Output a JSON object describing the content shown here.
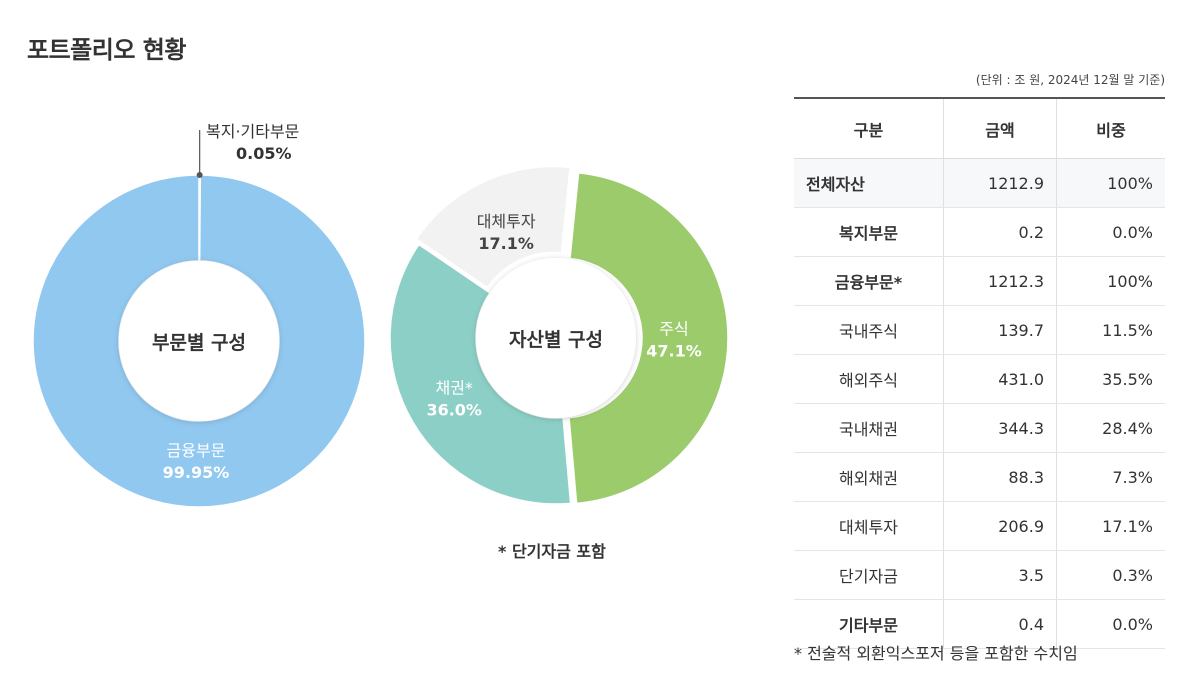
{
  "page_title": "포트폴리오 현황",
  "chart_data": [
    {
      "type": "pie",
      "title": "부문별 구성",
      "categories": [
        "복지·기타부문",
        "금융부문"
      ],
      "values": [
        0.05,
        99.95
      ],
      "labels": [
        "0.05%",
        "99.95%"
      ],
      "colors": [
        "#f2f2f2",
        "#91c8f0"
      ]
    },
    {
      "type": "pie",
      "title": "자산별 구성",
      "categories": [
        "주식",
        "채권*",
        "대체투자"
      ],
      "values": [
        47.1,
        36.0,
        17.1
      ],
      "labels": [
        "47.1%",
        "36.0%",
        "17.1%"
      ],
      "colors": [
        "#9ccb6c",
        "#8ccfc6",
        "#f2f2f2"
      ]
    }
  ],
  "chart_footnote": "* 단기자금 포함",
  "table": {
    "unit_note": "(단위 : 조 원, 2024년 12월 말 기준)",
    "headers": [
      "구분",
      "금액",
      "비중"
    ],
    "rows": [
      {
        "name": "전체자산",
        "amount": "1212.9",
        "share": "100%",
        "bold": true,
        "total": true
      },
      {
        "name": "복지부문",
        "amount": "0.2",
        "share": "0.0%",
        "bold": true
      },
      {
        "name": "금융부문*",
        "amount": "1212.3",
        "share": "100%",
        "bold": true
      },
      {
        "name": "국내주식",
        "amount": "139.7",
        "share": "11.5%"
      },
      {
        "name": "해외주식",
        "amount": "431.0",
        "share": "35.5%"
      },
      {
        "name": "국내채권",
        "amount": "344.3",
        "share": "28.4%"
      },
      {
        "name": "해외채권",
        "amount": "88.3",
        "share": "7.3%"
      },
      {
        "name": "대체투자",
        "amount": "206.9",
        "share": "17.1%"
      },
      {
        "name": "단기자금",
        "amount": "3.5",
        "share": "0.3%"
      },
      {
        "name": "기타부문",
        "amount": "0.4",
        "share": "0.0%",
        "bold": true
      }
    ],
    "footnote": "* 전술적 외환익스포저 등을 포함한 수치임"
  }
}
